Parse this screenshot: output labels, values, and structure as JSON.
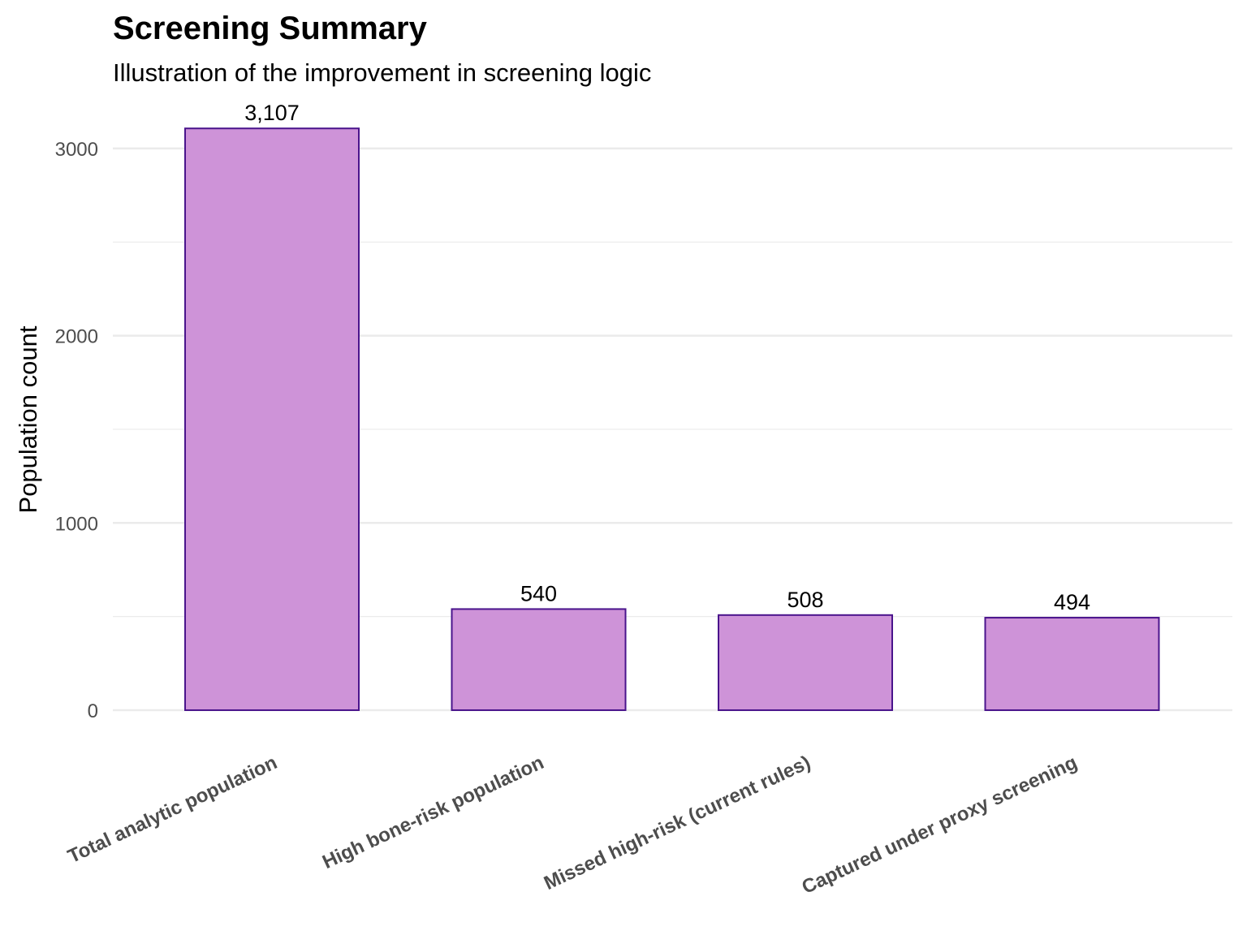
{
  "chart_data": {
    "type": "bar",
    "title": "Screening Summary",
    "subtitle": "Illustration of the improvement in screening logic",
    "xlabel": "",
    "ylabel": "Population count",
    "categories": [
      "Total analytic population",
      "High bone-risk population",
      "Missed high-risk (current rules)",
      "Captured under proxy screening"
    ],
    "values": [
      3107,
      540,
      508,
      494
    ],
    "data_labels": [
      "3,107",
      "540",
      "508",
      "494"
    ],
    "ylim": [
      0,
      3107
    ],
    "yticks": [
      0,
      1000,
      2000,
      3000
    ],
    "ytick_labels": [
      "0",
      "1000",
      "2000",
      "3000"
    ],
    "grid": true,
    "colors": {
      "bar_fill": "#ce93d8",
      "bar_stroke": "#4a148c",
      "grid": "#ebebeb"
    }
  }
}
